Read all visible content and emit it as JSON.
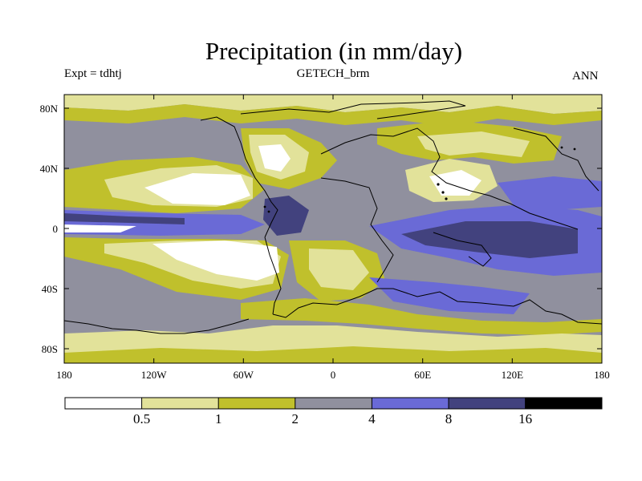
{
  "header": {
    "title": "Precipitation (in mm/day)",
    "experiment": "Expt = tdhtj",
    "model": "GETECH_brm",
    "season": "ANN"
  },
  "map": {
    "lat_labels": [
      "80N",
      "40N",
      "0",
      "40S",
      "80S"
    ],
    "lon_labels": [
      "180",
      "120W",
      "60W",
      "0",
      "60E",
      "120E",
      "180"
    ]
  },
  "legend": {
    "labels": [
      "0.5",
      "1",
      "2",
      "4",
      "8",
      "16"
    ],
    "colors": [
      "#ffffff",
      "#e2e29a",
      "#c0c02c",
      "#90909e",
      "#6a6ad6",
      "#42427e",
      "#000000"
    ]
  },
  "colors": {
    "white": "#ffffff",
    "light_yellow": "#e2e29a",
    "olive": "#c0c02c",
    "gray": "#90909e",
    "periwinkle": "#6a6ad6",
    "navy": "#42427e",
    "black": "#000000"
  }
}
